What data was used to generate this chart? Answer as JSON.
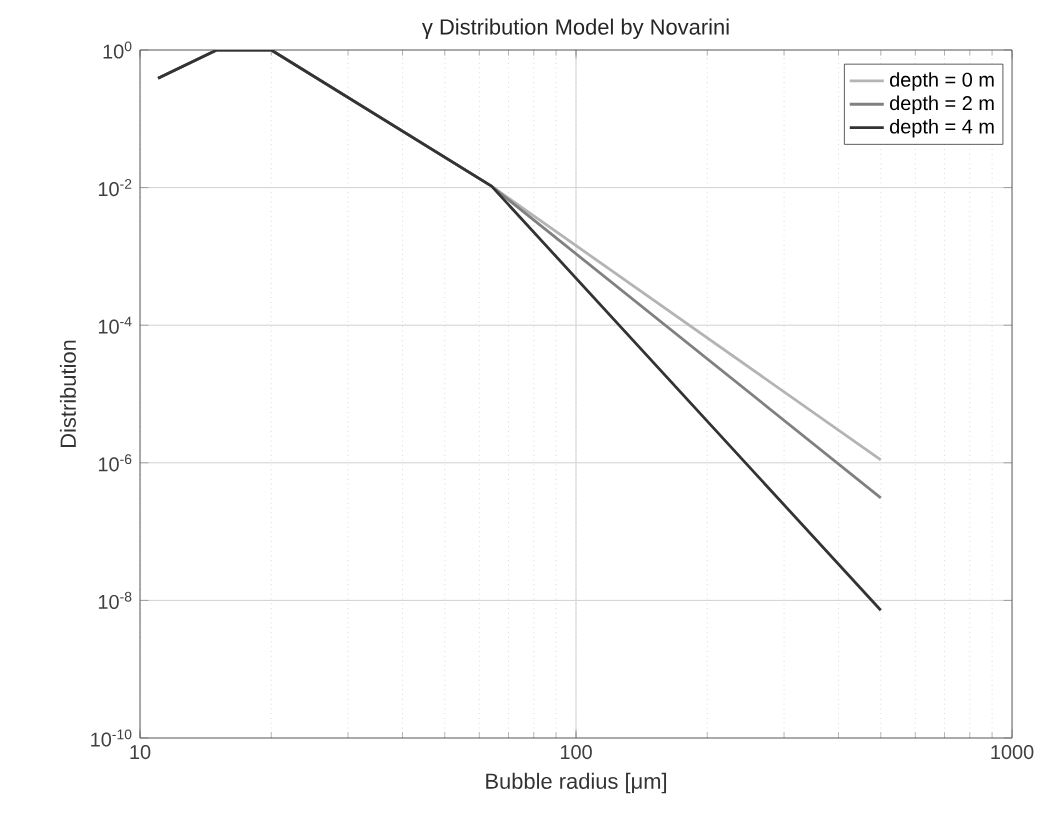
{
  "chart_data": {
    "type": "line",
    "title": "γ Distribution Model by Novarini",
    "xlabel": "Bubble radius [μm]",
    "ylabel": "Distribution",
    "log": "xy",
    "grid": true,
    "legend": "top right",
    "line_style": "solid",
    "marker": "none",
    "xlim": [
      10,
      1000
    ],
    "ylim": [
      1e-10,
      1
    ],
    "xticks": [
      10,
      100,
      1000
    ],
    "yticks": [
      {
        "value": 1e-10,
        "label": "10$^{-10}$"
      },
      {
        "value": 1e-08,
        "label": "10$^{-8}$"
      },
      {
        "value": 1e-06,
        "label": "10$^{-6}$"
      },
      {
        "value": 0.0001,
        "label": "10$^{-4}$"
      },
      {
        "value": 0.01,
        "label": "10$^{-2}$"
      },
      {
        "value": 1,
        "label": "10$^{0}$"
      }
    ],
    "series": [
      {
        "name": "depth = 0 m",
        "color": "#b4b4b4",
        "x": [
          11,
          15,
          20,
          64,
          500
        ],
        "values": [
          0.39,
          1,
          1,
          0.0105,
          1.1e-06
        ]
      },
      {
        "name": "depth = 2 m",
        "color": "#808080",
        "x": [
          11,
          15,
          20,
          64,
          500
        ],
        "values": [
          0.39,
          1,
          1,
          0.0105,
          3.1e-07
        ]
      },
      {
        "name": "depth = 4 m",
        "color": "#333333",
        "x": [
          11,
          15,
          20,
          64,
          500
        ],
        "values": [
          0.39,
          1,
          1,
          0.0105,
          7.2e-09
        ]
      }
    ]
  }
}
